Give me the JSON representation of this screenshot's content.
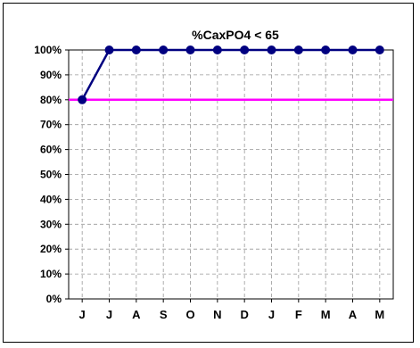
{
  "chart_data": {
    "type": "line",
    "title": "%CaxPO4 < 65",
    "categories": [
      "J",
      "J",
      "A",
      "S",
      "O",
      "N",
      "D",
      "J",
      "F",
      "M",
      "A",
      "M"
    ],
    "series": [
      {
        "values": [
          80,
          100,
          100,
          100,
          100,
          100,
          100,
          100,
          100,
          100,
          100,
          100
        ],
        "color": "#000080"
      }
    ],
    "target": {
      "value": 80,
      "color": "#ff00ff"
    },
    "yticks": [
      0,
      10,
      20,
      30,
      40,
      50,
      60,
      70,
      80,
      90,
      100
    ],
    "ytick_labels": [
      "0%",
      "10%",
      "20%",
      "30%",
      "40%",
      "50%",
      "60%",
      "70%",
      "80%",
      "90%",
      "100%"
    ],
    "ylim": [
      0,
      100
    ],
    "grid": true,
    "xlabel": "",
    "ylabel": ""
  }
}
